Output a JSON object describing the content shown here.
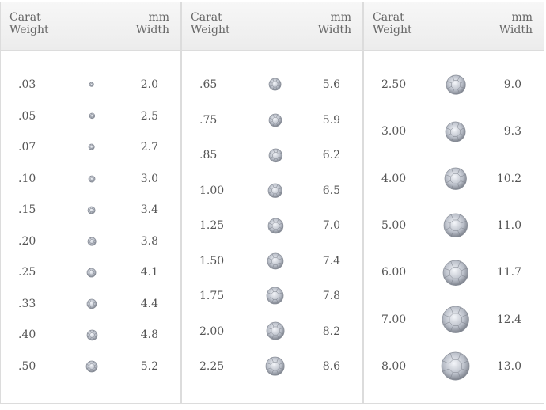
{
  "columns": [
    {
      "headers": [
        "Carat Weight",
        "mm Width"
      ],
      "rows": [
        [
          ".03",
          "2.0"
        ],
        [
          ".05",
          "2.5"
        ],
        [
          ".07",
          "2.7"
        ],
        [
          ".10",
          "3.0"
        ],
        [
          ".15",
          "3.4"
        ],
        [
          ".20",
          "3.8"
        ],
        [
          ".25",
          "4.1"
        ],
        [
          ".33",
          "4.4"
        ],
        [
          ".40",
          "4.8"
        ],
        [
          ".50",
          "5.2"
        ]
      ]
    },
    {
      "headers": [
        "Carat Weight",
        "mm Width"
      ],
      "rows": [
        [
          ".65",
          "5.6"
        ],
        [
          ".75",
          "5.9"
        ],
        [
          ".85",
          "6.2"
        ],
        [
          "1.00",
          "6.5"
        ],
        [
          "1.25",
          "7.0"
        ],
        [
          "1.50",
          "7.4"
        ],
        [
          "1.75",
          "7.8"
        ],
        [
          "2.00",
          "8.2"
        ],
        [
          "2.25",
          "8.6"
        ]
      ]
    },
    {
      "headers": [
        "Carat Weight",
        "mm Width"
      ],
      "rows": [
        [
          "2.50",
          "9.0"
        ],
        [
          "3.00",
          "9.3"
        ],
        [
          "4.00",
          "10.2"
        ],
        [
          "5.00",
          "11.0"
        ],
        [
          "6.00",
          "11.7"
        ],
        [
          "7.00",
          "12.4"
        ],
        [
          "8.00",
          "13.0"
        ]
      ]
    }
  ]
}
